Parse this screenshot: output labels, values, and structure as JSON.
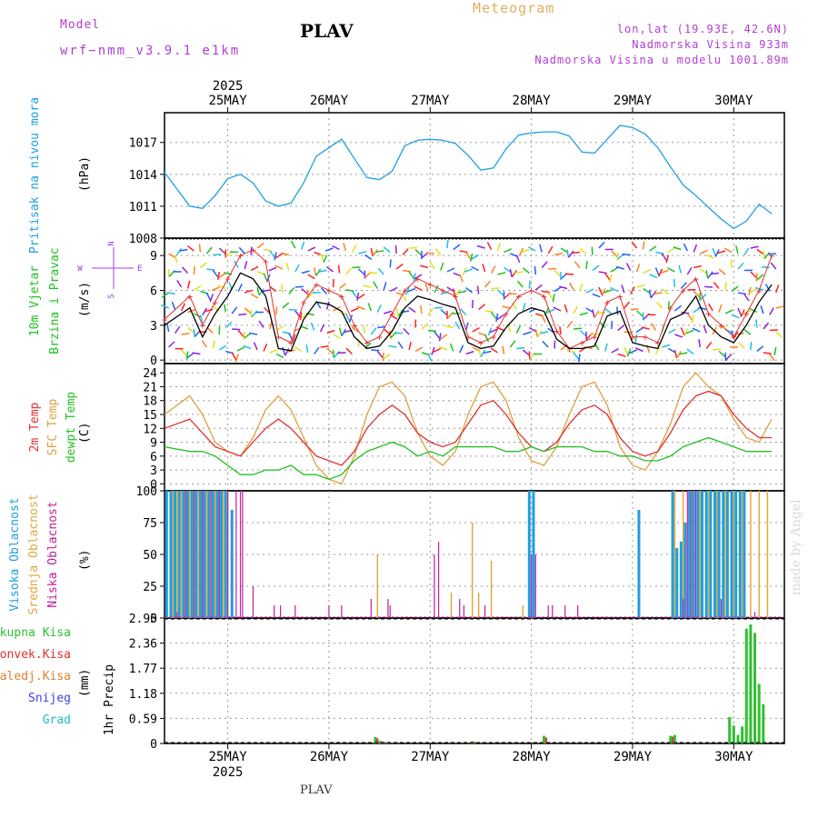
{
  "header": {
    "model_label": "Model",
    "model_name": "wrf−nmm_v3.9.1  e1km",
    "station": "PLAV",
    "title": "Meteogram",
    "lonlat": "lon,lat (19.93E, 42.6N)",
    "elevation": "Nadmorska Visina 933m",
    "elevation_model": "Nadmorska Visina u modelu 1001.89m"
  },
  "footer": {
    "station": "PLAV",
    "credit": "made by Angel"
  },
  "colors": {
    "pressure": "#1fa0e0",
    "sfc_temp": "#e0a040",
    "temp2m": "#e03030",
    "dewpt": "#20c020",
    "high_cloud": "#1e9ee0",
    "mid_cloud": "#e0a840",
    "low_cloud": "#c020a0",
    "wind_speed": "#000000",
    "gust": "#e03030",
    "precip": "#30c030",
    "conv": "#e03030"
  },
  "time_axis": {
    "top_year": "2025",
    "bottom_year": "2025",
    "days": [
      "25MAY",
      "26MAY",
      "27MAY",
      "28MAY",
      "29MAY",
      "30MAY"
    ]
  },
  "chart_data": [
    {
      "type": "line",
      "panel": "pressure",
      "ylabel_lines": [
        "Pritisak na nivou mora"
      ],
      "unit": "(hPa)",
      "yticks": [
        "1008",
        "1011",
        "1014",
        "1017"
      ],
      "ylim": [
        1008,
        1019.8
      ],
      "x": [
        0,
        6,
        9,
        12,
        15,
        18,
        21,
        24,
        27,
        30,
        33,
        36,
        39,
        42,
        45,
        48,
        51,
        54,
        57,
        60,
        63,
        66,
        69,
        72,
        75,
        78,
        81,
        84,
        87,
        90,
        93,
        96,
        99,
        102,
        105,
        108,
        111,
        114,
        117,
        120,
        123,
        126,
        129,
        132,
        135,
        138,
        141,
        144
      ],
      "series": [
        {
          "values": [
            1014.2,
            1011.0,
            1010.8,
            1012.0,
            1013.6,
            1014.0,
            1013.2,
            1011.5,
            1011.0,
            1011.3,
            1013.2,
            1015.7,
            1016.5,
            1017.3,
            1015.5,
            1013.7,
            1013.5,
            1014.3,
            1016.7,
            1017.2,
            1017.3,
            1017.2,
            1016.9,
            1015.8,
            1014.4,
            1014.6,
            1016.4,
            1017.7,
            1017.9,
            1018.0,
            1018.0,
            1017.6,
            1016.1,
            1016.0,
            1017.3,
            1018.6,
            1018.4,
            1017.8,
            1016.5,
            1014.7,
            1013.0,
            1012.0,
            1010.9,
            1009.8,
            1008.9,
            1009.6,
            1011.2,
            1010.3
          ]
        }
      ]
    },
    {
      "type": "line",
      "panel": "wind",
      "ylabel_lines": [
        "10m Vjetar",
        "Brzina i Pravac"
      ],
      "unit": "(m/s)",
      "compass": [
        "N",
        "S",
        "E",
        "W"
      ],
      "yticks": [
        "0",
        "3",
        "6",
        "9"
      ],
      "ylim": [
        -0.3,
        10.5
      ],
      "x": [
        0,
        6,
        9,
        12,
        15,
        18,
        21,
        24,
        27,
        30,
        33,
        36,
        39,
        42,
        45,
        48,
        51,
        54,
        57,
        60,
        63,
        66,
        69,
        72,
        75,
        78,
        81,
        84,
        87,
        90,
        93,
        96,
        99,
        102,
        105,
        108,
        111,
        114,
        117,
        120,
        123,
        126,
        129,
        132,
        135,
        138,
        141,
        144
      ],
      "series": [
        {
          "values": [
            3.0,
            4.5,
            2.0,
            4.0,
            5.5,
            7.5,
            7.0,
            5.5,
            1.0,
            0.8,
            3.5,
            5.0,
            4.8,
            4.2,
            2.0,
            1.0,
            1.2,
            2.5,
            4.5,
            5.5,
            5.2,
            4.8,
            4.5,
            1.5,
            1.0,
            1.2,
            2.8,
            4.0,
            4.5,
            4.2,
            1.8,
            1.0,
            1.0,
            1.2,
            3.8,
            4.2,
            1.5,
            1.2,
            1.0,
            3.5,
            4.0,
            5.5,
            3.0,
            2.0,
            1.5,
            3.0,
            5.0,
            6.5
          ]
        },
        {
          "values": [
            3.5,
            5.5,
            3.0,
            5.0,
            7.0,
            9.0,
            9.5,
            8.5,
            2.0,
            1.5,
            5.0,
            6.5,
            6.0,
            5.5,
            3.0,
            1.5,
            2.0,
            4.0,
            6.0,
            7.0,
            6.5,
            6.0,
            5.5,
            2.0,
            1.5,
            2.0,
            4.0,
            5.5,
            6.0,
            5.5,
            2.5,
            1.0,
            1.5,
            2.0,
            5.0,
            5.5,
            2.0,
            2.0,
            1.5,
            4.5,
            6.0,
            7.0,
            4.0,
            3.0,
            2.0,
            4.0,
            6.0,
            9.0
          ]
        }
      ]
    },
    {
      "type": "line",
      "panel": "temperature",
      "ylabel_lines": [
        "2m Temp",
        "SFC Temp",
        "dewpt Temp"
      ],
      "unit": "(C)",
      "yticks": [
        "0",
        "3",
        "6",
        "9",
        "12",
        "15",
        "18",
        "21",
        "24"
      ],
      "ylim": [
        -1.5,
        26
      ],
      "x": [
        0,
        6,
        9,
        12,
        15,
        18,
        21,
        24,
        27,
        30,
        33,
        36,
        39,
        42,
        45,
        48,
        51,
        54,
        57,
        60,
        63,
        66,
        69,
        72,
        75,
        78,
        81,
        84,
        87,
        90,
        93,
        96,
        99,
        102,
        105,
        108,
        111,
        114,
        117,
        120,
        123,
        126,
        129,
        132,
        135,
        138,
        141,
        144
      ],
      "series": [
        {
          "values": [
            12,
            14,
            11,
            8,
            7,
            6,
            9,
            12,
            14,
            12,
            9,
            6,
            5,
            4,
            7,
            12,
            15,
            17,
            15,
            11,
            9,
            8,
            9,
            13,
            17,
            18,
            15,
            11,
            8,
            7,
            9,
            13,
            16,
            17,
            15,
            10,
            7,
            6,
            7,
            11,
            16,
            19,
            20,
            19,
            15,
            12,
            10,
            10
          ]
        },
        {
          "values": [
            15,
            19,
            15,
            9,
            7,
            6,
            10,
            16,
            19,
            16,
            10,
            4,
            1,
            0,
            6,
            15,
            21,
            22,
            19,
            11,
            6,
            4,
            7,
            15,
            21,
            22,
            18,
            10,
            5,
            4,
            8,
            15,
            21,
            22,
            17,
            8,
            4,
            3,
            7,
            13,
            21,
            24,
            21,
            19,
            14,
            10,
            9,
            14
          ]
        },
        {
          "values": [
            8,
            7,
            7,
            6,
            4,
            2,
            2,
            3,
            3,
            4,
            2,
            2,
            1,
            2,
            5,
            7,
            8,
            9,
            8,
            6,
            7,
            6,
            8,
            8,
            8,
            8,
            7,
            7,
            8,
            7,
            8,
            8,
            8,
            7,
            7,
            6,
            6,
            5,
            5,
            6,
            8,
            9,
            10,
            9,
            8,
            7,
            7,
            7
          ]
        }
      ]
    },
    {
      "type": "bar",
      "panel": "clouds",
      "ylabel_lines": [
        "Visoka Oblacnost",
        "Srednja Oblacnost",
        "Niska Oblacnost"
      ],
      "unit": "(%)",
      "yticks": [
        "0",
        "25",
        "50",
        "75",
        "100"
      ],
      "ylim": [
        0,
        100
      ],
      "series": [
        {
          "name": "high",
          "x": [
            0.5,
            1.5,
            2.5,
            3.5,
            4.5,
            5.5,
            6.5,
            7.5,
            8.5,
            9.5,
            10.5,
            11.5,
            12.5,
            13.5,
            14.5,
            16.0,
            86.5,
            87.5,
            112.5,
            120.5,
            121.5,
            122.5,
            123.5,
            124.5,
            125.5,
            126.5,
            127.5,
            128.5,
            129.5,
            130.5,
            131.5,
            132.5,
            133.5,
            134.5,
            135.5,
            136.5,
            137.5
          ],
          "values": [
            100,
            100,
            100,
            100,
            100,
            100,
            100,
            100,
            100,
            100,
            100,
            100,
            100,
            100,
            100,
            85,
            100,
            100,
            85,
            100,
            55,
            60,
            75,
            100,
            100,
            100,
            100,
            100,
            100,
            100,
            100,
            100,
            100,
            100,
            100,
            100,
            100
          ]
        },
        {
          "name": "mid",
          "x": [
            2.0,
            3.0,
            4.0,
            5.0,
            6.0,
            7.0,
            8.0,
            9.0,
            10.0,
            11.0,
            12.0,
            13.0,
            14.0,
            15.0,
            50.5,
            68.0,
            73.0,
            74.5,
            77.5,
            85.0,
            121.0,
            123.0,
            125.0,
            127.0,
            129.0,
            131.0,
            133.0,
            135.0,
            137.0,
            139.0,
            141.0,
            143.0
          ],
          "values": [
            100,
            100,
            100,
            100,
            100,
            100,
            100,
            100,
            100,
            100,
            100,
            100,
            100,
            100,
            50,
            20,
            75,
            20,
            45,
            10,
            100,
            100,
            100,
            100,
            100,
            100,
            100,
            100,
            100,
            100,
            100,
            100
          ]
        },
        {
          "name": "low",
          "x": [
            3.0,
            5.0,
            7.0,
            9.0,
            11.0,
            13.0,
            15.0,
            17.0,
            18.0,
            18.5,
            21.0,
            26.0,
            27.5,
            31.0,
            39.0,
            42.0,
            49.0,
            53.0,
            53.5,
            64.0,
            65.0,
            70.0,
            71.0,
            76.0,
            87.0,
            88.0,
            91.0,
            92.0,
            95.0,
            98.0,
            123.0,
            124.0,
            125.0,
            126.0,
            132.0,
            140.0
          ],
          "values": [
            5,
            100,
            100,
            100,
            100,
            100,
            100,
            100,
            100,
            100,
            25,
            10,
            10,
            10,
            10,
            10,
            15,
            15,
            10,
            50,
            60,
            15,
            10,
            10,
            50,
            50,
            10,
            10,
            10,
            10,
            15,
            100,
            100,
            100,
            15,
            5
          ]
        }
      ]
    },
    {
      "type": "bar",
      "panel": "precip",
      "ylabel_lines": [
        "1hr Precip"
      ],
      "unit": "(mm)",
      "yticks": [
        "0",
        "0.59",
        "1.18",
        "1.77",
        "2.36",
        "2.95"
      ],
      "ylim": [
        0,
        2.95
      ],
      "legend": [
        {
          "label": "Ukupna  Kisa",
          "color": "#30c030"
        },
        {
          "label": "Konvek.Kisa",
          "color": "#e03030"
        },
        {
          "label": "Zaledj.Kisa",
          "color": "#e08030"
        },
        {
          "label": "Snijeg",
          "color": "#4040e0"
        },
        {
          "label": "Grad",
          "color": "#20c0c0"
        }
      ],
      "series": [
        {
          "name": "total",
          "x": [
            50,
            51,
            52,
            53,
            73,
            90,
            120,
            121,
            134,
            135,
            136,
            137,
            138,
            139,
            140,
            141,
            142
          ],
          "values": [
            0.15,
            0.06,
            0.04,
            0.04,
            0.05,
            0.18,
            0.18,
            0.2,
            0.62,
            0.42,
            0.2,
            0.4,
            2.7,
            2.8,
            2.6,
            1.4,
            0.92
          ]
        },
        {
          "name": "convective",
          "x": [
            50.5,
            51.5,
            73.5,
            90.5,
            120.5
          ],
          "values": [
            0.12,
            0.05,
            0.04,
            0.14,
            0.16
          ]
        }
      ]
    }
  ]
}
